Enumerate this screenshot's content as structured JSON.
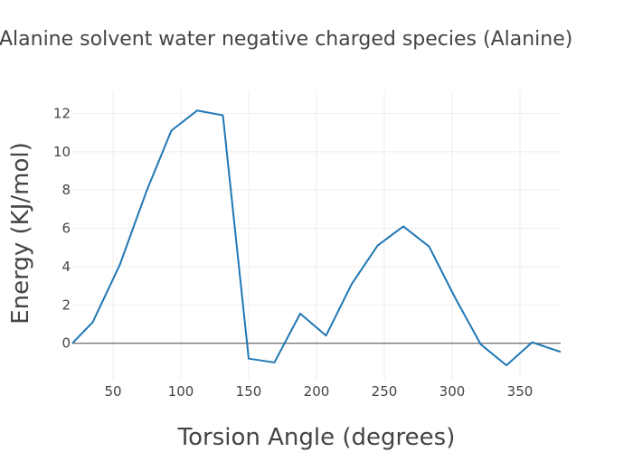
{
  "chart_data": {
    "type": "line",
    "title": "Energy surface Alanine solvent water negative charged species (Alanine)",
    "xlabel": "Torsion Angle (degrees)",
    "ylabel": "Energy (KJ/mol)",
    "xlim": [
      20,
      380
    ],
    "ylim": [
      -1.9,
      13.2
    ],
    "x_ticks": [
      50,
      100,
      150,
      200,
      250,
      300,
      350
    ],
    "y_ticks": [
      0,
      2,
      4,
      6,
      8,
      10,
      12
    ],
    "grid": true,
    "zero_line": true,
    "colors": {
      "line": "#1f77b4",
      "grid": "#eeeeee",
      "zero_line": "#444444",
      "text": "#444444"
    },
    "series": [
      {
        "x": [
          20,
          35,
          55,
          75,
          93,
          112,
          131,
          150,
          169,
          188,
          207,
          226,
          245,
          264,
          283,
          302,
          321,
          340,
          359,
          380
        ],
        "y": [
          0,
          1.1,
          4.1,
          8.0,
          11.1,
          12.15,
          11.9,
          -0.8,
          -1.0,
          1.55,
          0.4,
          3.1,
          5.1,
          6.1,
          5.05,
          2.4,
          -0.05,
          -1.15,
          0.05,
          -0.45
        ]
      }
    ]
  }
}
